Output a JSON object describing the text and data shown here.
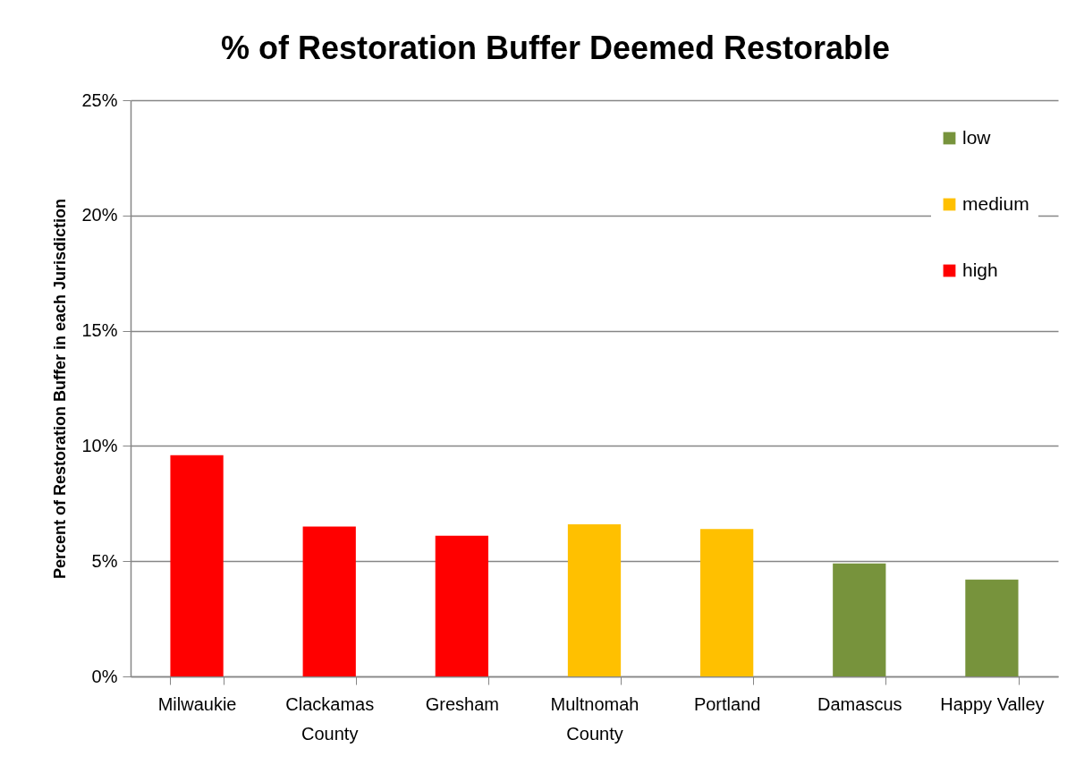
{
  "chart_data": {
    "type": "bar",
    "title": "% of Restoration Buffer Deemed Restorable",
    "ylabel": "Percent of Restoration Buffer in each Jurisdiction",
    "categories": [
      "Milwaukie",
      "Clackamas County",
      "Gresham",
      "Multnomah County",
      "Portland",
      "Damascus",
      "Happy Valley"
    ],
    "series": [
      {
        "name": "low",
        "color": "#77933c",
        "values": [
          null,
          null,
          null,
          null,
          null,
          4.9,
          4.2
        ]
      },
      {
        "name": "medium",
        "color": "#ffc000",
        "values": [
          null,
          null,
          null,
          6.6,
          6.4,
          null,
          null
        ]
      },
      {
        "name": "high",
        "color": "#ff0000",
        "values": [
          9.6,
          6.5,
          6.1,
          null,
          null,
          null,
          null
        ]
      }
    ],
    "stacked": true,
    "ylim": [
      0,
      25
    ],
    "yticks": [
      {
        "value": 0,
        "label": "0%"
      },
      {
        "value": 5,
        "label": "5%"
      },
      {
        "value": 10,
        "label": "10%"
      },
      {
        "value": 15,
        "label": "15%"
      },
      {
        "value": 20,
        "label": "20%"
      },
      {
        "value": 25,
        "label": "25%"
      }
    ],
    "grid": "y",
    "legend": "top right"
  }
}
